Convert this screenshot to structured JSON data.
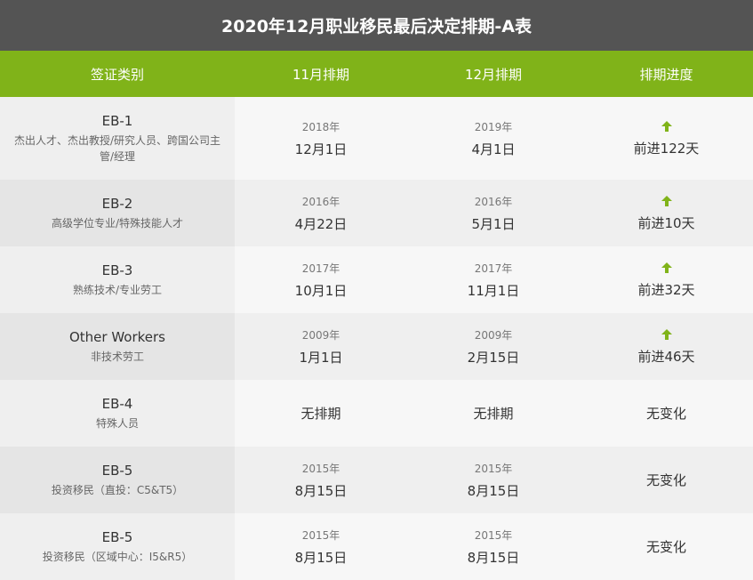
{
  "title": "2020年12月职业移民最后决定排期-A表",
  "headers": [
    "签证类别",
    "11月排期",
    "12月排期",
    "排期进度"
  ],
  "accent": "#80b319",
  "rows": [
    {
      "code": "EB-1",
      "desc": "杰出人才、杰出教授/研究人员、跨国公司主管/经理",
      "nov_year": "2018年",
      "nov_date": "12月1日",
      "dec_year": "2019年",
      "dec_date": "4月1日",
      "progress": "前进122天",
      "icon": "arrow-up"
    },
    {
      "code": "EB-2",
      "desc": "高级学位专业/特殊技能人才",
      "nov_year": "2016年",
      "nov_date": "4月22日",
      "dec_year": "2016年",
      "dec_date": "5月1日",
      "progress": "前进10天",
      "icon": "arrow-up"
    },
    {
      "code": "EB-3",
      "desc": "熟练技术/专业劳工",
      "nov_year": "2017年",
      "nov_date": "10月1日",
      "dec_year": "2017年",
      "dec_date": "11月1日",
      "progress": "前进32天",
      "icon": "arrow-up"
    },
    {
      "code": "Other Workers",
      "desc": "非技术劳工",
      "nov_year": "2009年",
      "nov_date": "1月1日",
      "dec_year": "2009年",
      "dec_date": "2月15日",
      "progress": "前进46天",
      "icon": "arrow-up"
    },
    {
      "code": "EB-4",
      "desc": "特殊人员",
      "nov_year": "",
      "nov_date": "无排期",
      "dec_year": "",
      "dec_date": "无排期",
      "progress": "无变化",
      "icon": ""
    },
    {
      "code": "EB-5",
      "desc": "投资移民（直投：C5&T5）",
      "nov_year": "2015年",
      "nov_date": "8月15日",
      "dec_year": "2015年",
      "dec_date": "8月15日",
      "progress": "无变化",
      "icon": ""
    },
    {
      "code": "EB-5",
      "desc": "投资移民（区域中心：I5&R5）",
      "nov_year": "2015年",
      "nov_date": "8月15日",
      "dec_year": "2015年",
      "dec_date": "8月15日",
      "progress": "无变化",
      "icon": ""
    }
  ]
}
